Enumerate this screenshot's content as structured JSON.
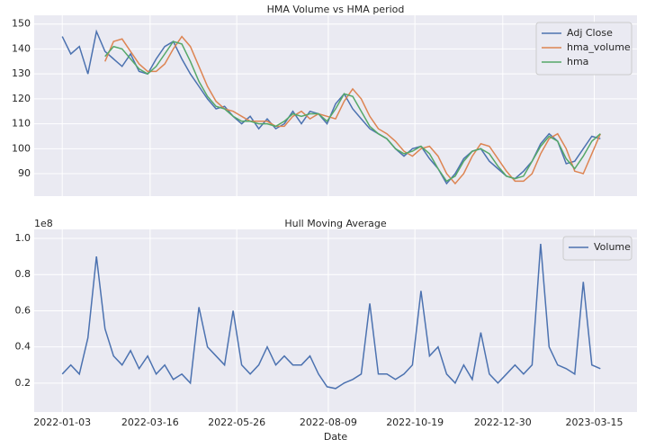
{
  "chart_data": [
    {
      "type": "line",
      "title": "HMA Volume vs HMA period",
      "x": [
        "2022-01-03",
        "2022-01-10",
        "2022-01-17",
        "2022-01-24",
        "2022-01-31",
        "2022-02-07",
        "2022-02-14",
        "2022-02-21",
        "2022-02-28",
        "2022-03-07",
        "2022-03-14",
        "2022-03-21",
        "2022-03-28",
        "2022-04-04",
        "2022-04-11",
        "2022-04-18",
        "2022-04-25",
        "2022-05-02",
        "2022-05-09",
        "2022-05-16",
        "2022-05-23",
        "2022-05-30",
        "2022-06-06",
        "2022-06-13",
        "2022-06-20",
        "2022-06-27",
        "2022-07-04",
        "2022-07-11",
        "2022-07-18",
        "2022-07-25",
        "2022-08-01",
        "2022-08-08",
        "2022-08-15",
        "2022-08-22",
        "2022-08-29",
        "2022-09-05",
        "2022-09-12",
        "2022-09-19",
        "2022-09-26",
        "2022-10-03",
        "2022-10-10",
        "2022-10-17",
        "2022-10-24",
        "2022-10-31",
        "2022-11-07",
        "2022-11-14",
        "2022-11-21",
        "2022-11-28",
        "2022-12-05",
        "2022-12-12",
        "2022-12-19",
        "2022-12-26",
        "2023-01-02",
        "2023-01-09",
        "2023-01-16",
        "2023-01-23",
        "2023-01-30",
        "2023-02-06",
        "2023-02-13",
        "2023-02-20",
        "2023-02-27",
        "2023-03-06",
        "2023-03-13",
        "2023-03-20"
      ],
      "series": [
        {
          "name": "Adj Close",
          "color": "#4c72b0",
          "values": [
            145,
            138,
            141,
            130,
            147,
            139,
            136,
            133,
            138,
            131,
            130,
            136,
            141,
            143,
            136,
            130,
            125,
            120,
            116,
            117,
            113,
            110,
            113,
            108,
            112,
            108,
            110,
            115,
            110,
            115,
            114,
            110,
            118,
            122,
            116,
            112,
            108,
            106,
            104,
            100,
            97,
            100,
            101,
            96,
            92,
            86,
            90,
            96,
            99,
            100,
            95,
            92,
            89,
            88,
            91,
            95,
            102,
            106,
            103,
            94,
            95,
            100,
            105,
            104
          ]
        },
        {
          "name": "hma_volume",
          "color": "#dd8452",
          "values": [
            null,
            null,
            null,
            null,
            null,
            135,
            143,
            144,
            139,
            134,
            131,
            131,
            134,
            140,
            145,
            141,
            133,
            125,
            119,
            116,
            115,
            113,
            111,
            111,
            111,
            109,
            109,
            113,
            115,
            112,
            114,
            113,
            112,
            119,
            124,
            120,
            113,
            108,
            106,
            103,
            99,
            97,
            100,
            101,
            97,
            90,
            86,
            90,
            97,
            102,
            101,
            96,
            91,
            87,
            87,
            90,
            98,
            104,
            106,
            100,
            91,
            90,
            98,
            106
          ]
        },
        {
          "name": "hma",
          "color": "#55a868",
          "values": [
            null,
            null,
            null,
            null,
            null,
            137,
            141,
            140,
            136,
            132,
            130,
            133,
            138,
            143,
            142,
            135,
            127,
            121,
            117,
            116,
            113,
            111,
            111,
            110,
            110,
            109,
            111,
            114,
            113,
            114,
            114,
            111,
            116,
            122,
            121,
            115,
            109,
            106,
            104,
            100,
            98,
            99,
            101,
            98,
            92,
            87,
            89,
            95,
            99,
            100,
            98,
            93,
            89,
            88,
            89,
            95,
            101,
            105,
            103,
            96,
            92,
            97,
            103,
            106
          ]
        }
      ],
      "xlim": [
        "2021-12-11",
        "2023-04-19"
      ],
      "xticks": [
        "2022-01-03",
        "2022-03-16",
        "2022-05-26",
        "2022-08-09",
        "2022-10-19",
        "2022-12-30",
        "2023-03-15"
      ],
      "ylim": [
        81,
        153.5
      ],
      "yticks": [
        90,
        100,
        110,
        120,
        130,
        140,
        150
      ],
      "grid": true,
      "legend": "upper right"
    },
    {
      "type": "line",
      "title": "Hull Moving Average",
      "xlabel": "Date",
      "offset_label": "1e8",
      "x": [
        "2022-01-03",
        "2022-01-10",
        "2022-01-17",
        "2022-01-24",
        "2022-01-31",
        "2022-02-07",
        "2022-02-14",
        "2022-02-21",
        "2022-02-28",
        "2022-03-07",
        "2022-03-14",
        "2022-03-21",
        "2022-03-28",
        "2022-04-04",
        "2022-04-11",
        "2022-04-18",
        "2022-04-25",
        "2022-05-02",
        "2022-05-09",
        "2022-05-16",
        "2022-05-23",
        "2022-05-30",
        "2022-06-06",
        "2022-06-13",
        "2022-06-20",
        "2022-06-27",
        "2022-07-04",
        "2022-07-11",
        "2022-07-18",
        "2022-07-25",
        "2022-08-01",
        "2022-08-08",
        "2022-08-15",
        "2022-08-22",
        "2022-08-29",
        "2022-09-05",
        "2022-09-12",
        "2022-09-19",
        "2022-09-26",
        "2022-10-03",
        "2022-10-10",
        "2022-10-17",
        "2022-10-24",
        "2022-10-31",
        "2022-11-07",
        "2022-11-14",
        "2022-11-21",
        "2022-11-28",
        "2022-12-05",
        "2022-12-12",
        "2022-12-19",
        "2022-12-26",
        "2023-01-02",
        "2023-01-09",
        "2023-01-16",
        "2023-01-23",
        "2023-01-30",
        "2023-02-06",
        "2023-02-13",
        "2023-02-20",
        "2023-02-27",
        "2023-03-06",
        "2023-03-13",
        "2023-03-20"
      ],
      "series": [
        {
          "name": "Volume",
          "color": "#4c72b0",
          "values": [
            0.25,
            0.3,
            0.25,
            0.45,
            0.9,
            0.5,
            0.35,
            0.3,
            0.38,
            0.28,
            0.35,
            0.25,
            0.3,
            0.22,
            0.25,
            0.2,
            0.62,
            0.4,
            0.35,
            0.3,
            0.6,
            0.3,
            0.25,
            0.3,
            0.4,
            0.3,
            0.35,
            0.3,
            0.3,
            0.35,
            0.25,
            0.18,
            0.17,
            0.2,
            0.22,
            0.25,
            0.64,
            0.25,
            0.25,
            0.22,
            0.25,
            0.3,
            0.71,
            0.35,
            0.4,
            0.25,
            0.2,
            0.3,
            0.22,
            0.48,
            0.25,
            0.2,
            0.25,
            0.3,
            0.25,
            0.3,
            0.97,
            0.4,
            0.3,
            0.28,
            0.25,
            0.76,
            0.3,
            0.28
          ]
        }
      ],
      "xlim": [
        "2021-12-11",
        "2023-04-19"
      ],
      "xticks": [
        "2022-01-03",
        "2022-03-16",
        "2022-05-26",
        "2022-08-09",
        "2022-10-19",
        "2022-12-30",
        "2023-03-15"
      ],
      "ylim": [
        0.04,
        1.05
      ],
      "yticks": [
        0.2,
        0.4,
        0.6,
        0.8,
        {
          "value": 1.0,
          "label": "1.0"
        }
      ],
      "grid": true,
      "legend": "upper right"
    }
  ]
}
